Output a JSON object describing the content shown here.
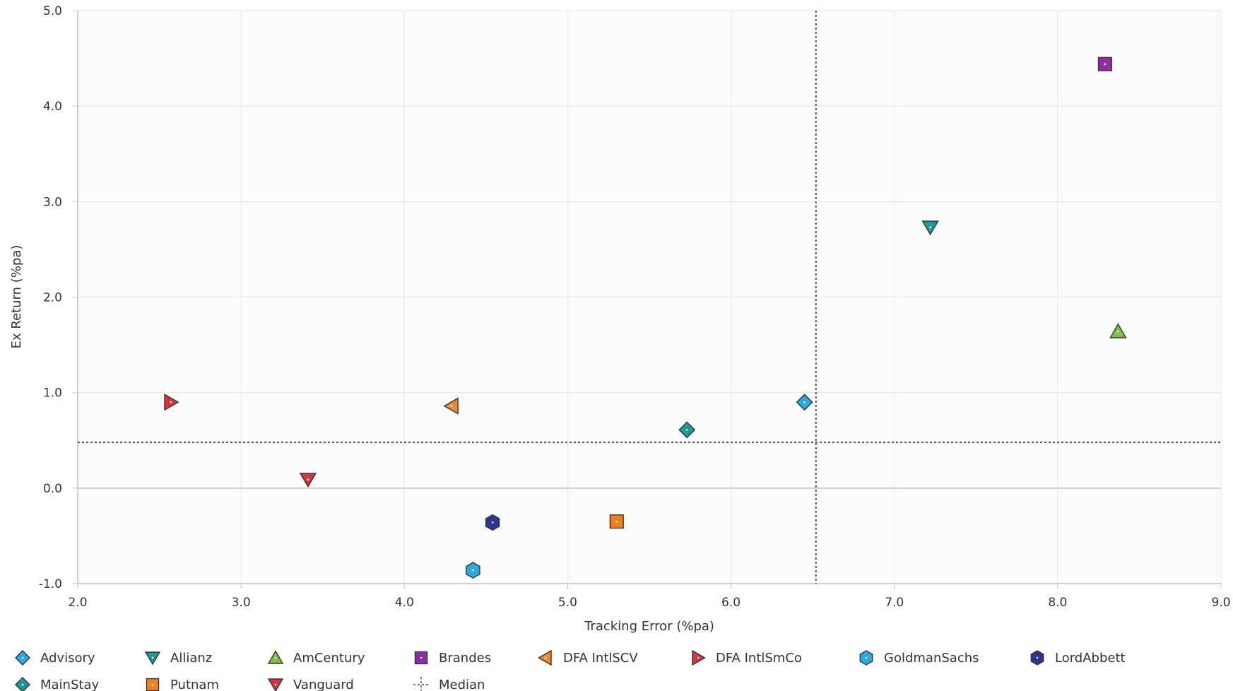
{
  "chart_data": {
    "type": "scatter",
    "xlabel": "Tracking Error (%pa)",
    "ylabel": "Ex Return (%pa)",
    "xlim": [
      2.0,
      9.0
    ],
    "ylim": [
      -1.0,
      5.0
    ],
    "xticks": [
      "2.0",
      "3.0",
      "4.0",
      "5.0",
      "6.0",
      "7.0",
      "8.0",
      "9.0"
    ],
    "yticks": [
      "-1.0",
      "0.0",
      "1.0",
      "2.0",
      "3.0",
      "4.0",
      "5.0"
    ],
    "grid": true,
    "legend_position": "bottom",
    "series": [
      {
        "name": "Advisory",
        "marker": "diamond",
        "color": "#29A9E1",
        "x": 6.45,
        "y": 0.9
      },
      {
        "name": "Allianz",
        "marker": "triangle-down",
        "color": "#1A9A9A",
        "x": 7.22,
        "y": 2.73
      },
      {
        "name": "AmCentury",
        "marker": "triangle-up",
        "color": "#7CC144",
        "x": 8.37,
        "y": 1.64
      },
      {
        "name": "Brandes",
        "marker": "square",
        "color": "#8E2E9E",
        "x": 8.29,
        "y": 4.44
      },
      {
        "name": "DFA IntlSCV",
        "marker": "triangle-left",
        "color": "#EE8A35",
        "x": 4.29,
        "y": 0.86
      },
      {
        "name": "DFA IntlSmCo",
        "marker": "triangle-right",
        "color": "#D9343D",
        "x": 2.57,
        "y": 0.9
      },
      {
        "name": "GoldmanSachs",
        "marker": "hexagon",
        "color": "#2AACE2",
        "x": 4.42,
        "y": -0.86
      },
      {
        "name": "LordAbbett",
        "marker": "hexagon",
        "color": "#2E3492",
        "x": 4.54,
        "y": -0.36
      },
      {
        "name": "MainStay",
        "marker": "diamond",
        "color": "#1A9A9A",
        "x": 5.73,
        "y": 0.61
      },
      {
        "name": "Putnam",
        "marker": "square",
        "color": "#F07F1E",
        "x": 5.3,
        "y": -0.35
      },
      {
        "name": "Vanguard",
        "marker": "triangle-down",
        "color": "#D9343D",
        "x": 3.41,
        "y": 0.09
      }
    ],
    "median": {
      "name": "Median",
      "x": 6.52,
      "y": 0.48
    }
  }
}
